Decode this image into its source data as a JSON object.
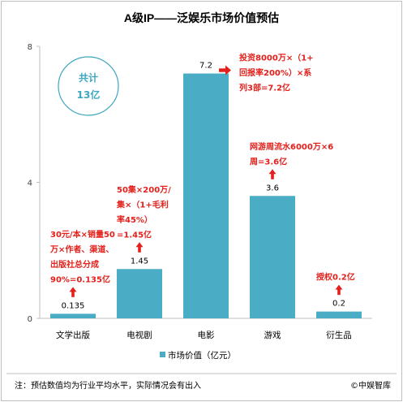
{
  "chart_data": {
    "type": "bar",
    "title": "A级IP——泛娱乐市场价值预估",
    "categories": [
      "文学出版",
      "电视剧",
      "电影",
      "游戏",
      "衍生品"
    ],
    "series": [
      {
        "name": "市场价值（亿元）",
        "values": [
          0.135,
          1.45,
          7.2,
          3.6,
          0.2
        ]
      }
    ],
    "value_labels": [
      "0.135",
      "1.45",
      "7.2",
      "3.6",
      "0.2"
    ],
    "ylim": [
      0,
      8
    ],
    "yticks": [
      "0",
      "4",
      "8"
    ],
    "legend_position": "bottom",
    "bar_color": "#4bacc6",
    "annotation_color": "#e3201b",
    "grid": false
  },
  "badge": {
    "line1": "共计",
    "line2": "13亿",
    "color": "#3fa7c0"
  },
  "annotations": [
    {
      "target": 0,
      "lines": [
        "30元/本×销量50",
        "万×作者、渠道、",
        "出版社总分成",
        "90%=0.135亿"
      ],
      "arrow": "up"
    },
    {
      "target": 1,
      "lines": [
        "50集×200万/",
        "集×（1+毛利",
        "率45%）",
        "=1.45亿"
      ],
      "arrow": "up"
    },
    {
      "target": 2,
      "lines": [
        "投资8000万×（1+",
        "回报率200%）×系",
        "列3部=7.2亿"
      ],
      "arrow": "left"
    },
    {
      "target": 3,
      "lines": [
        "网游周流水6000万×6",
        "周=3.6亿"
      ],
      "arrow": "up"
    },
    {
      "target": 4,
      "lines": [
        "授权0.2亿"
      ],
      "arrow": "up"
    }
  ],
  "footnote": {
    "left": "注：预估数值均为行业平均水平，实际情况会有出入",
    "right": "©中娱智库"
  }
}
